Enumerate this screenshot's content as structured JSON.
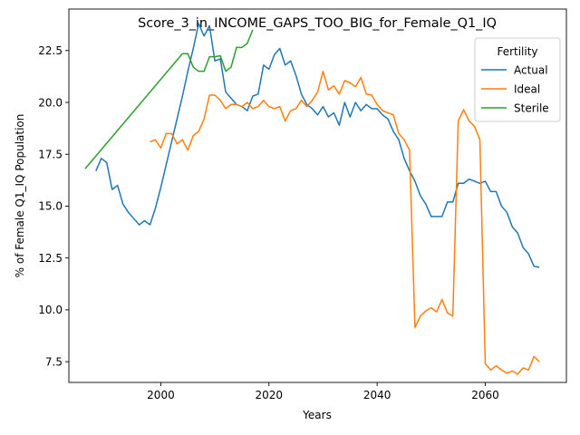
{
  "chart_data": {
    "type": "line",
    "title": "Score_3_in_INCOME_GAPS_TOO_BIG_for_Female_Q1_IQ",
    "xlabel": "Years",
    "ylabel": "% of Female Q1_IQ Population",
    "xlim": [
      1983,
      2075
    ],
    "ylim": [
      6.5,
      24.5
    ],
    "xticks": [
      2000,
      2020,
      2040,
      2060
    ],
    "yticks": [
      7.5,
      10.0,
      12.5,
      15.0,
      17.5,
      20.0,
      22.5
    ],
    "grid": false,
    "legend": {
      "title": "Fertility",
      "placement": "top-right"
    },
    "series": [
      {
        "name": "Actual",
        "color": "#1f77b4",
        "points": [
          [
            1988,
            16.7
          ],
          [
            1989,
            17.3
          ],
          [
            1990,
            17.1
          ],
          [
            1991,
            15.8
          ],
          [
            1992,
            16.0
          ],
          [
            1993,
            15.1
          ],
          [
            1994,
            14.7
          ],
          [
            1995,
            14.4
          ],
          [
            1996,
            14.1
          ],
          [
            1997,
            14.3
          ],
          [
            1998,
            14.1
          ],
          [
            1999,
            14.9
          ],
          [
            2000,
            15.9
          ],
          [
            2001,
            17.0
          ],
          [
            2002,
            18.1
          ],
          [
            2003,
            19.2
          ],
          [
            2004,
            20.3
          ],
          [
            2005,
            21.5
          ],
          [
            2006,
            22.6
          ],
          [
            2007,
            23.8
          ],
          [
            2008,
            23.2
          ],
          [
            2009,
            23.7
          ],
          [
            2010,
            22.0
          ],
          [
            2011,
            22.1
          ],
          [
            2012,
            20.5
          ],
          [
            2013,
            20.2
          ],
          [
            2014,
            19.9
          ],
          [
            2015,
            19.8
          ],
          [
            2016,
            19.6
          ],
          [
            2017,
            20.3
          ],
          [
            2018,
            20.4
          ],
          [
            2019,
            21.8
          ],
          [
            2020,
            21.6
          ],
          [
            2021,
            22.3
          ],
          [
            2022,
            22.6
          ],
          [
            2023,
            21.8
          ],
          [
            2024,
            22.0
          ],
          [
            2025,
            21.3
          ],
          [
            2026,
            20.4
          ],
          [
            2027,
            19.9
          ],
          [
            2028,
            19.7
          ],
          [
            2029,
            19.4
          ],
          [
            2030,
            19.8
          ],
          [
            2031,
            19.3
          ],
          [
            2032,
            19.5
          ],
          [
            2033,
            18.9
          ],
          [
            2034,
            20.0
          ],
          [
            2035,
            19.3
          ],
          [
            2036,
            20.0
          ],
          [
            2037,
            19.6
          ],
          [
            2038,
            19.9
          ],
          [
            2039,
            19.7
          ],
          [
            2040,
            19.7
          ],
          [
            2041,
            19.4
          ],
          [
            2042,
            19.2
          ],
          [
            2043,
            18.6
          ],
          [
            2044,
            18.2
          ],
          [
            2045,
            17.3
          ],
          [
            2046,
            16.7
          ],
          [
            2047,
            16.2
          ],
          [
            2048,
            15.5
          ],
          [
            2049,
            15.1
          ],
          [
            2050,
            14.5
          ],
          [
            2051,
            14.5
          ],
          [
            2052,
            14.5
          ],
          [
            2053,
            15.2
          ],
          [
            2054,
            15.2
          ],
          [
            2055,
            16.1
          ],
          [
            2056,
            16.1
          ],
          [
            2057,
            16.3
          ],
          [
            2058,
            16.2
          ],
          [
            2059,
            16.1
          ],
          [
            2060,
            16.2
          ],
          [
            2061,
            15.7
          ],
          [
            2062,
            15.7
          ],
          [
            2063,
            15.0
          ],
          [
            2064,
            14.7
          ],
          [
            2065,
            14.0
          ],
          [
            2066,
            13.7
          ],
          [
            2067,
            13.0
          ],
          [
            2068,
            12.7
          ],
          [
            2069,
            12.1
          ],
          [
            2070,
            12.05
          ]
        ]
      },
      {
        "name": "Ideal",
        "color": "#ff7f0e",
        "points": [
          [
            1998,
            18.1
          ],
          [
            1999,
            18.2
          ],
          [
            2000,
            17.8
          ],
          [
            2001,
            18.5
          ],
          [
            2002,
            18.5
          ],
          [
            2003,
            18.0
          ],
          [
            2004,
            18.2
          ],
          [
            2005,
            17.7
          ],
          [
            2006,
            18.4
          ],
          [
            2007,
            18.6
          ],
          [
            2008,
            19.2
          ],
          [
            2009,
            20.35
          ],
          [
            2010,
            20.35
          ],
          [
            2011,
            20.1
          ],
          [
            2012,
            19.7
          ],
          [
            2013,
            19.9
          ],
          [
            2014,
            19.9
          ],
          [
            2015,
            19.8
          ],
          [
            2016,
            20.0
          ],
          [
            2017,
            19.7
          ],
          [
            2018,
            19.8
          ],
          [
            2019,
            20.1
          ],
          [
            2020,
            19.8
          ],
          [
            2021,
            19.7
          ],
          [
            2022,
            19.8
          ],
          [
            2023,
            19.1
          ],
          [
            2024,
            19.6
          ],
          [
            2025,
            19.7
          ],
          [
            2026,
            20.1
          ],
          [
            2027,
            19.8
          ],
          [
            2028,
            20.1
          ],
          [
            2029,
            20.5
          ],
          [
            2030,
            21.5
          ],
          [
            2031,
            20.6
          ],
          [
            2032,
            20.8
          ],
          [
            2033,
            20.4
          ],
          [
            2034,
            21.05
          ],
          [
            2035,
            20.95
          ],
          [
            2036,
            20.75
          ],
          [
            2037,
            21.2
          ],
          [
            2038,
            20.4
          ],
          [
            2039,
            20.35
          ],
          [
            2040,
            19.9
          ],
          [
            2041,
            19.6
          ],
          [
            2042,
            19.5
          ],
          [
            2043,
            19.4
          ],
          [
            2044,
            18.5
          ],
          [
            2045,
            18.2
          ],
          [
            2046,
            17.7
          ],
          [
            2047,
            9.15
          ],
          [
            2048,
            9.7
          ],
          [
            2049,
            9.95
          ],
          [
            2050,
            10.1
          ],
          [
            2051,
            9.9
          ],
          [
            2052,
            10.5
          ],
          [
            2053,
            9.85
          ],
          [
            2054,
            9.7
          ],
          [
            2055,
            19.1
          ],
          [
            2056,
            19.65
          ],
          [
            2057,
            19.1
          ],
          [
            2058,
            18.85
          ],
          [
            2059,
            18.2
          ],
          [
            2060,
            7.4
          ],
          [
            2061,
            7.1
          ],
          [
            2062,
            7.3
          ],
          [
            2063,
            7.1
          ],
          [
            2064,
            6.95
          ],
          [
            2065,
            7.05
          ],
          [
            2066,
            6.9
          ],
          [
            2067,
            7.2
          ],
          [
            2068,
            7.1
          ],
          [
            2069,
            7.75
          ],
          [
            2070,
            7.5
          ]
        ]
      },
      {
        "name": "Sterile",
        "color": "#2ca02c",
        "points": [
          [
            1986,
            16.8
          ],
          [
            2004,
            22.35
          ],
          [
            2005,
            22.35
          ],
          [
            2006,
            21.7
          ],
          [
            2007,
            21.5
          ],
          [
            2008,
            21.5
          ],
          [
            2009,
            22.2
          ],
          [
            2010,
            22.2
          ],
          [
            2011,
            22.25
          ],
          [
            2012,
            21.5
          ],
          [
            2013,
            21.7
          ],
          [
            2014,
            22.65
          ],
          [
            2015,
            22.65
          ],
          [
            2016,
            22.85
          ],
          [
            2017,
            23.5
          ]
        ]
      }
    ]
  }
}
